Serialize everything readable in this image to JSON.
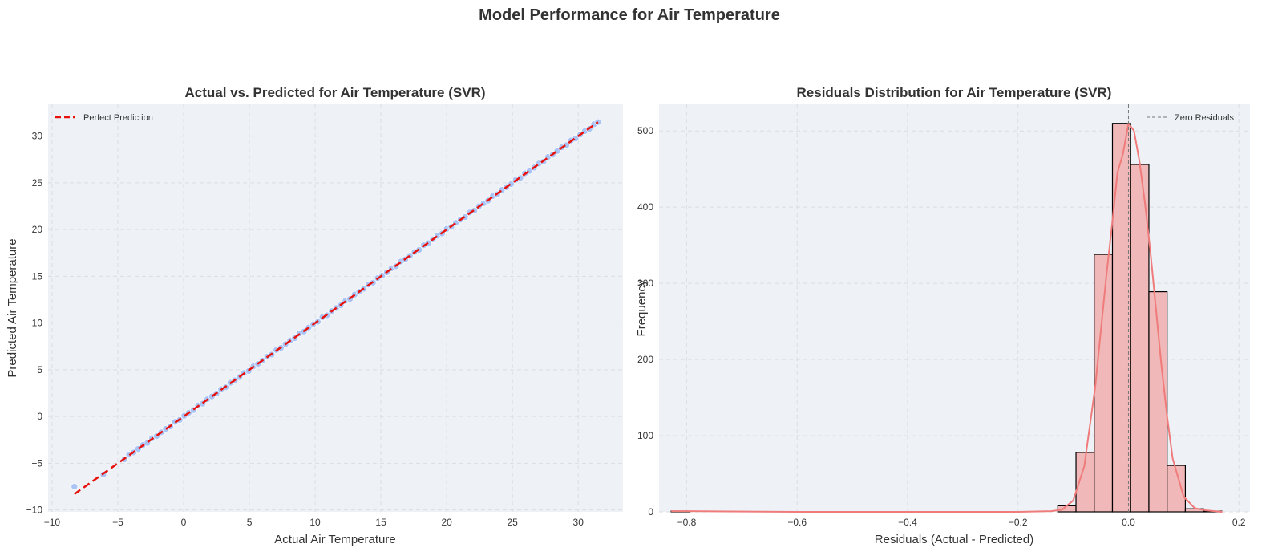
{
  "figure": {
    "suptitle": "Model Performance for Air Temperature"
  },
  "colors": {
    "panel_bg": "#EEF2F7",
    "grid": "#D9DEE5",
    "scatter_points": "#A9C4F5",
    "perfect_line": "#E8120C",
    "hist_fill": "#F0B8B8",
    "hist_edge": "#000000",
    "kde_line": "#EF7B7B",
    "zero_line": "#777777"
  },
  "chart_data": [
    {
      "type": "scatter",
      "title": "Actual vs. Predicted for Air Temperature (SVR)",
      "xlabel": "Actual Air Temperature",
      "ylabel": "Predicted Air Temperature",
      "xlim": [
        -10.3,
        33.4
      ],
      "ylim": [
        -10.2,
        33.4
      ],
      "xticks": [
        -10,
        -5,
        0,
        5,
        10,
        15,
        20,
        25,
        30
      ],
      "yticks": [
        -10,
        -5,
        0,
        5,
        10,
        15,
        20,
        25,
        30
      ],
      "grid": true,
      "legend": {
        "position": "top-left",
        "entries": [
          "Perfect Prediction"
        ]
      },
      "reference_line": {
        "name": "Perfect Prediction",
        "from": [
          -8.3,
          -8.3
        ],
        "to": [
          31.5,
          31.5
        ],
        "style": "dashed"
      },
      "x_range_of_points": [
        -8.3,
        31.5
      ],
      "outlier_points": [
        {
          "x": -8.3,
          "y": -7.5
        },
        {
          "x": -6.1,
          "y": -6.2
        }
      ]
    },
    {
      "type": "bar",
      "title": "Residuals Distribution for Air Temperature (SVR)",
      "xlabel": "Residuals (Actual - Predicted)",
      "ylabel": "Frequency",
      "xlim": [
        -0.85,
        0.22
      ],
      "ylim": [
        0,
        535
      ],
      "xticks": [
        -0.8,
        -0.6,
        -0.4,
        -0.2,
        0.0,
        0.2
      ],
      "yticks": [
        0,
        100,
        200,
        300,
        400,
        500
      ],
      "grid": true,
      "legend": {
        "position": "top-right",
        "entries": [
          "Zero Residuals"
        ]
      },
      "zero_line": {
        "name": "Zero Residuals",
        "x": 0.0
      },
      "bins": [
        {
          "start": -0.828,
          "end": -0.794,
          "count": 1
        },
        {
          "start": -0.128,
          "end": -0.095,
          "count": 8
        },
        {
          "start": -0.095,
          "end": -0.062,
          "count": 78
        },
        {
          "start": -0.062,
          "end": -0.029,
          "count": 338
        },
        {
          "start": -0.029,
          "end": 0.004,
          "count": 510
        },
        {
          "start": 0.004,
          "end": 0.037,
          "count": 456
        },
        {
          "start": 0.037,
          "end": 0.07,
          "count": 289
        },
        {
          "start": 0.07,
          "end": 0.103,
          "count": 61
        },
        {
          "start": 0.103,
          "end": 0.136,
          "count": 4
        },
        {
          "start": 0.136,
          "end": 0.169,
          "count": 1
        }
      ],
      "kde": {
        "x": [
          -0.828,
          -0.8,
          -0.6,
          -0.4,
          -0.2,
          -0.14,
          -0.12,
          -0.1,
          -0.08,
          -0.06,
          -0.04,
          -0.03,
          -0.02,
          -0.01,
          0.0,
          0.01,
          0.02,
          0.03,
          0.04,
          0.05,
          0.06,
          0.07,
          0.08,
          0.1,
          0.12,
          0.14,
          0.17
        ],
        "y": [
          1,
          1,
          0,
          0,
          0,
          1,
          3,
          15,
          60,
          165,
          310,
          375,
          445,
          470,
          510,
          500,
          460,
          405,
          340,
          265,
          190,
          125,
          70,
          20,
          5,
          2,
          0
        ]
      }
    }
  ]
}
